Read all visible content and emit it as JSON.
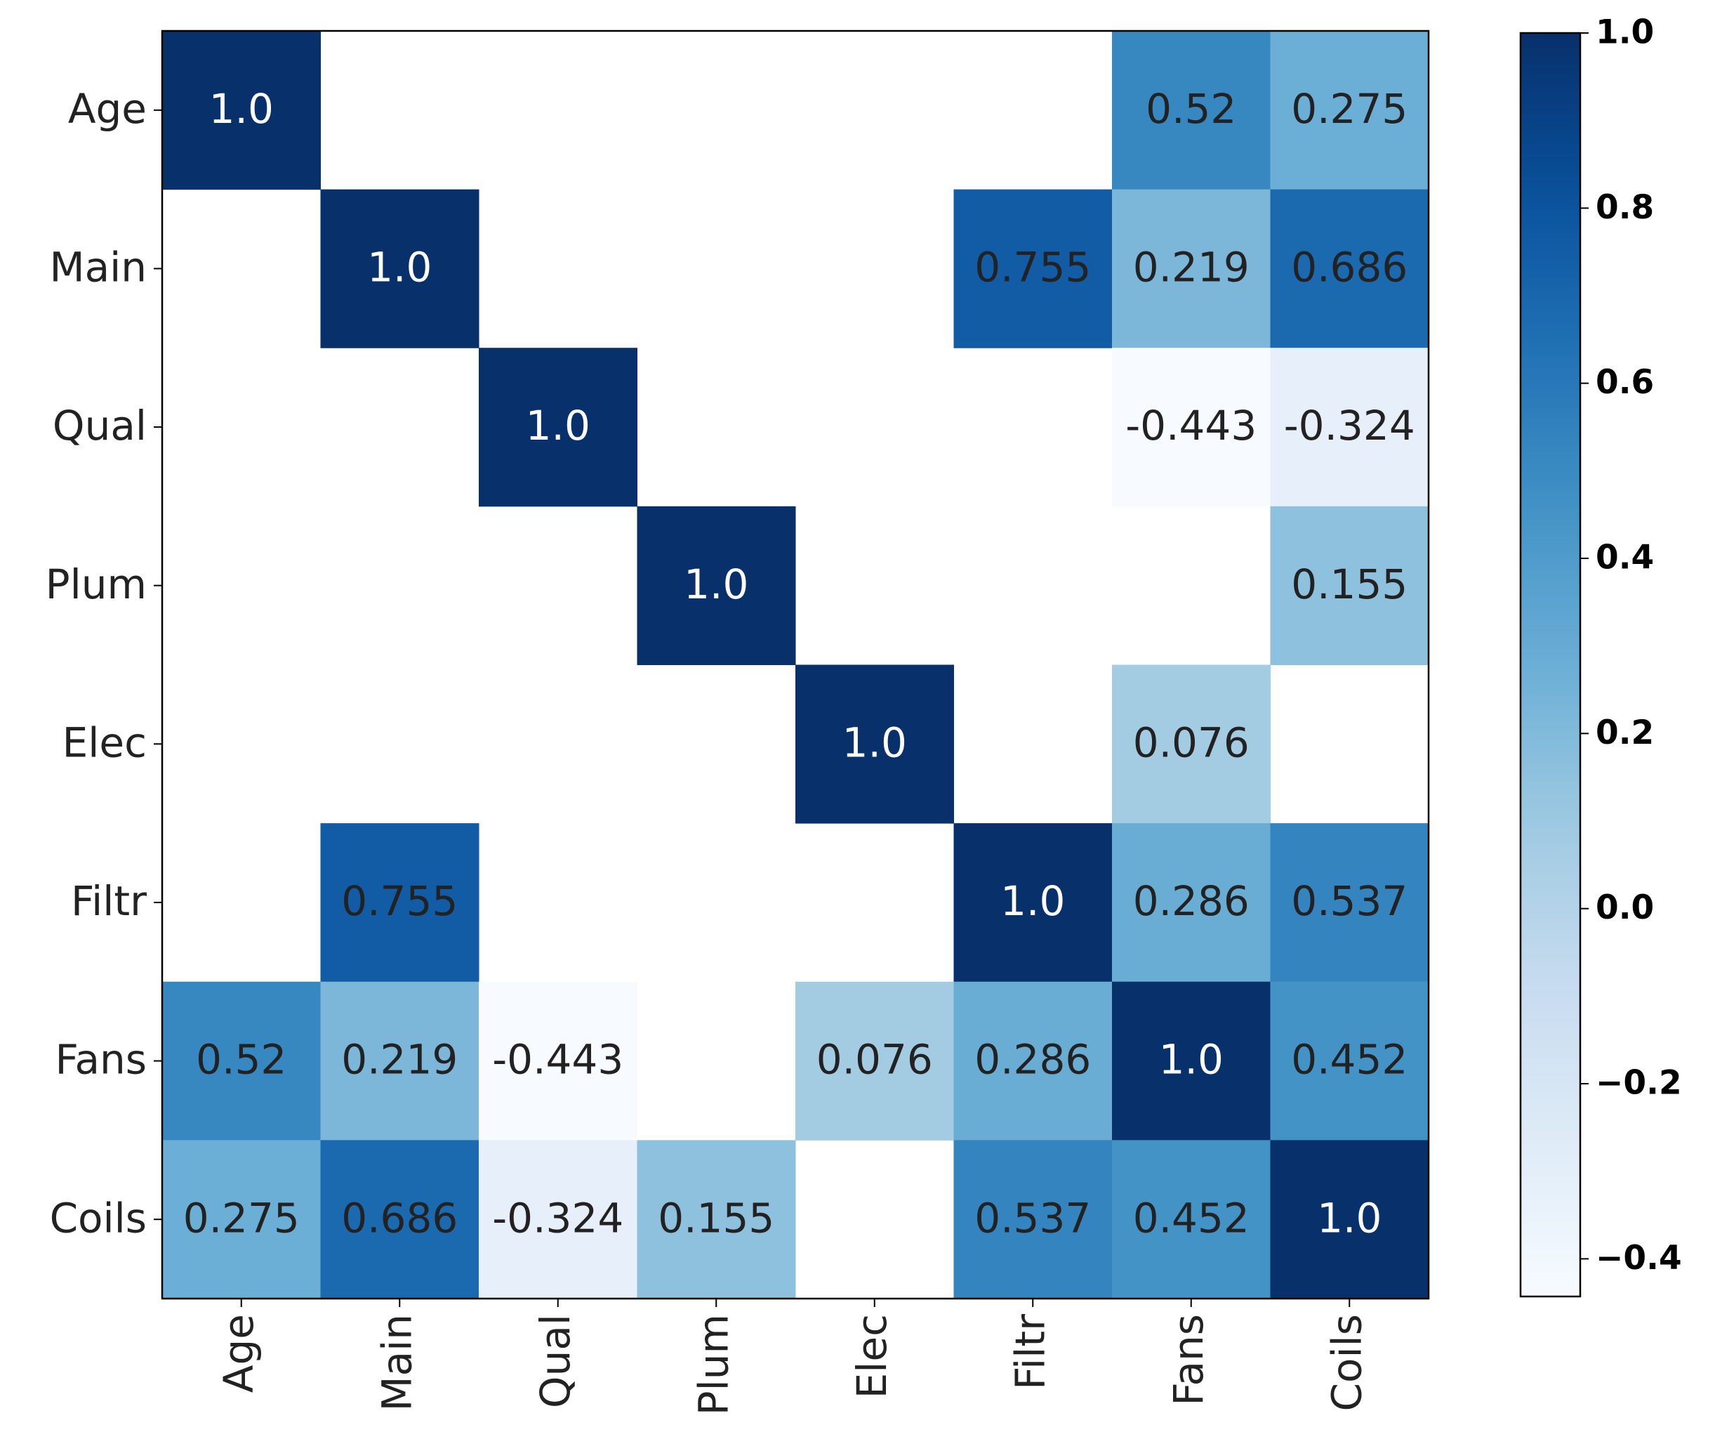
{
  "chart_data": {
    "type": "heatmap",
    "x_categories": [
      "Age",
      "Main",
      "Qual",
      "Plum",
      "Elec",
      "Filtr",
      "Fans",
      "Coils"
    ],
    "y_categories": [
      "Age",
      "Main",
      "Qual",
      "Plum",
      "Elec",
      "Filtr",
      "Fans",
      "Coils"
    ],
    "values": [
      [
        1,
        null,
        null,
        null,
        null,
        null,
        0.52,
        0.275
      ],
      [
        null,
        1,
        null,
        null,
        null,
        0.755,
        0.219,
        0.686
      ],
      [
        null,
        null,
        1,
        null,
        null,
        null,
        -0.443,
        -0.324
      ],
      [
        null,
        null,
        null,
        1,
        null,
        null,
        null,
        0.155
      ],
      [
        null,
        null,
        null,
        null,
        1,
        null,
        0.076,
        null
      ],
      [
        null,
        0.755,
        null,
        null,
        null,
        1,
        0.286,
        0.537
      ],
      [
        0.52,
        0.219,
        -0.443,
        null,
        0.076,
        0.286,
        1,
        0.452
      ],
      [
        0.275,
        0.686,
        -0.324,
        0.155,
        null,
        0.537,
        0.452,
        1
      ]
    ],
    "value_labels": [
      [
        "1.0",
        null,
        null,
        null,
        null,
        null,
        "0.52",
        "0.275"
      ],
      [
        null,
        "1.0",
        null,
        null,
        null,
        "0.755",
        "0.219",
        "0.686"
      ],
      [
        null,
        null,
        "1.0",
        null,
        null,
        null,
        "-0.443",
        "-0.324"
      ],
      [
        null,
        null,
        null,
        "1.0",
        null,
        null,
        null,
        "0.155"
      ],
      [
        null,
        null,
        null,
        null,
        "1.0",
        null,
        "0.076",
        null
      ],
      [
        null,
        "0.755",
        null,
        null,
        null,
        "1.0",
        "0.286",
        "0.537"
      ],
      [
        "0.52",
        "0.219",
        "-0.443",
        null,
        "0.076",
        "0.286",
        "1.0",
        "0.452"
      ],
      [
        "0.275",
        "0.686",
        "-0.324",
        "0.155",
        null,
        "0.537",
        "0.452",
        "1.0"
      ]
    ],
    "colormap": "Blues",
    "clim": [
      -0.443,
      1
    ],
    "cticks": [
      {
        "value": -0.4,
        "label": "−0.4"
      },
      {
        "value": -0.2,
        "label": "−0.2"
      },
      {
        "value": 0,
        "label": "0.0"
      },
      0.2,
      0.4,
      0.6,
      0.8,
      {
        "value": 1,
        "label": "1.0"
      }
    ]
  }
}
